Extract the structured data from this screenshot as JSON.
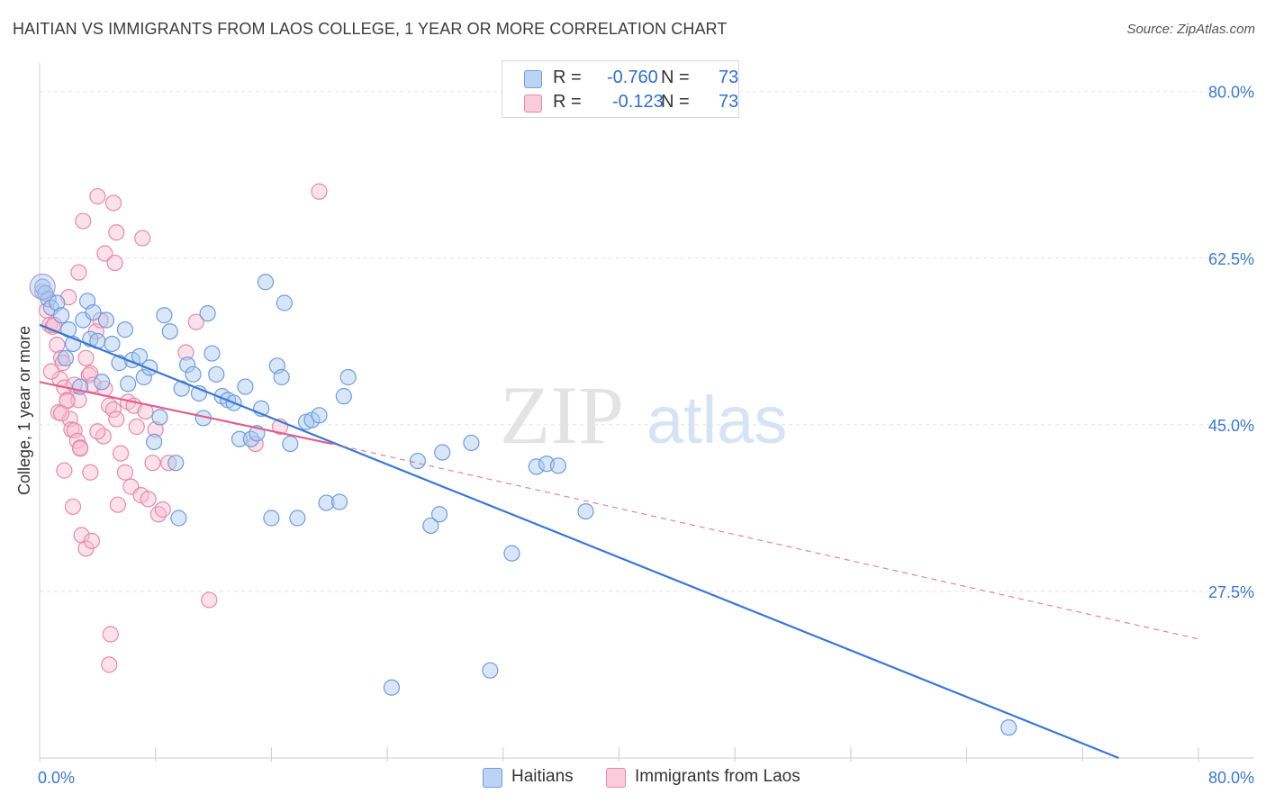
{
  "title": "HAITIAN VS IMMIGRANTS FROM LAOS COLLEGE, 1 YEAR OR MORE CORRELATION CHART",
  "source": "Source: ZipAtlas.com",
  "watermark": {
    "zip": "ZIP",
    "atlas": "atlas"
  },
  "legend": {
    "r_label": "R =",
    "n_label": "N =",
    "rows": [
      {
        "r": "-0.760",
        "n": "73",
        "fill": "#a9c7f0",
        "stroke": "#6d9de0"
      },
      {
        "r": "-0.123",
        "n": "73",
        "fill": "#f7bdd0",
        "stroke": "#e88aa8"
      }
    ]
  },
  "bottom_legend": [
    "Haitians",
    "Immigrants from Laos"
  ],
  "chart_data": {
    "type": "scatter",
    "ylabel": "College, 1 year or more",
    "xlim": [
      0,
      80
    ],
    "ylim": [
      10,
      83
    ],
    "x_tick_labels": [
      "0.0%",
      "80.0%"
    ],
    "y_ticks": [
      {
        "value": 80.0,
        "label": "80.0%"
      },
      {
        "value": 62.5,
        "label": "62.5%"
      },
      {
        "value": 45.0,
        "label": "45.0%"
      },
      {
        "value": 27.5,
        "label": "27.5%"
      }
    ],
    "grid": true,
    "colors": {
      "haitians": "#3a78d4",
      "laos": "#e0608c",
      "axis_label": "#3a78d4"
    },
    "series": [
      {
        "name": "Haitians",
        "r": -0.76,
        "n": 73,
        "trend": {
          "x": [
            0,
            74.5
          ],
          "y": [
            55.5,
            10.0
          ],
          "dashed_to": null
        },
        "points": [
          [
            0.2,
            59.5
          ],
          [
            0.4,
            58.8
          ],
          [
            0.6,
            58.2
          ],
          [
            0.8,
            57.3
          ],
          [
            1.2,
            57.8
          ],
          [
            1.5,
            56.5
          ],
          [
            2.0,
            55.0
          ],
          [
            2.3,
            53.5
          ],
          [
            1.8,
            52.0
          ],
          [
            2.8,
            49.0
          ],
          [
            3.0,
            56.0
          ],
          [
            3.3,
            58.0
          ],
          [
            3.7,
            56.8
          ],
          [
            3.5,
            54.0
          ],
          [
            4.0,
            53.8
          ],
          [
            4.3,
            49.5
          ],
          [
            4.6,
            56.0
          ],
          [
            5.0,
            53.5
          ],
          [
            5.5,
            51.5
          ],
          [
            5.9,
            55.0
          ],
          [
            6.1,
            49.3
          ],
          [
            6.4,
            51.8
          ],
          [
            6.9,
            52.2
          ],
          [
            7.2,
            50.0
          ],
          [
            7.6,
            51.0
          ],
          [
            7.9,
            43.2
          ],
          [
            8.3,
            45.8
          ],
          [
            8.6,
            56.5
          ],
          [
            9.0,
            54.8
          ],
          [
            9.4,
            41.0
          ],
          [
            9.6,
            35.2
          ],
          [
            9.8,
            48.8
          ],
          [
            10.2,
            51.3
          ],
          [
            10.6,
            50.3
          ],
          [
            11.0,
            48.3
          ],
          [
            11.3,
            45.7
          ],
          [
            11.6,
            56.7
          ],
          [
            11.9,
            52.5
          ],
          [
            12.2,
            50.3
          ],
          [
            12.6,
            48.0
          ],
          [
            13.0,
            47.6
          ],
          [
            13.4,
            47.3
          ],
          [
            13.8,
            43.5
          ],
          [
            14.2,
            49.0
          ],
          [
            14.6,
            43.5
          ],
          [
            15.0,
            44.1
          ],
          [
            15.3,
            46.7
          ],
          [
            15.6,
            60.0
          ],
          [
            16.0,
            35.2
          ],
          [
            16.4,
            51.2
          ],
          [
            16.7,
            50.0
          ],
          [
            16.9,
            57.8
          ],
          [
            17.3,
            43.0
          ],
          [
            17.8,
            35.2
          ],
          [
            18.4,
            45.3
          ],
          [
            18.8,
            45.5
          ],
          [
            19.3,
            46.0
          ],
          [
            19.8,
            36.8
          ],
          [
            20.7,
            36.9
          ],
          [
            21.0,
            48.0
          ],
          [
            21.3,
            50.0
          ],
          [
            26.1,
            41.2
          ],
          [
            27.0,
            34.4
          ],
          [
            27.6,
            35.6
          ],
          [
            27.8,
            42.1
          ],
          [
            29.8,
            43.1
          ],
          [
            34.3,
            40.6
          ],
          [
            35.0,
            40.9
          ],
          [
            35.8,
            40.7
          ],
          [
            37.7,
            35.9
          ],
          [
            32.6,
            31.5
          ],
          [
            31.1,
            19.2
          ],
          [
            24.3,
            17.4
          ],
          [
            66.9,
            13.2
          ]
        ]
      },
      {
        "name": "Immigrants from Laos",
        "r": -0.123,
        "n": 73,
        "trend": {
          "x": [
            0,
            20.2
          ],
          "y": [
            49.5,
            43.0
          ],
          "dashed_to": [
            80,
            22.5
          ]
        },
        "points": [
          [
            0.2,
            59.0
          ],
          [
            0.5,
            57.0
          ],
          [
            0.7,
            55.5
          ],
          [
            0.9,
            55.3
          ],
          [
            1.2,
            53.4
          ],
          [
            1.5,
            52.0
          ],
          [
            1.6,
            51.5
          ],
          [
            1.4,
            49.8
          ],
          [
            0.8,
            50.6
          ],
          [
            1.7,
            48.9
          ],
          [
            1.9,
            47.6
          ],
          [
            2.1,
            45.6
          ],
          [
            2.2,
            44.5
          ],
          [
            2.4,
            44.4
          ],
          [
            2.6,
            43.3
          ],
          [
            2.8,
            42.6
          ],
          [
            2.4,
            49.2
          ],
          [
            2.7,
            47.6
          ],
          [
            3.2,
            52.0
          ],
          [
            3.4,
            50.2
          ],
          [
            3.5,
            50.4
          ],
          [
            3.7,
            49.2
          ],
          [
            3.9,
            54.8
          ],
          [
            4.2,
            56.0
          ],
          [
            4.5,
            48.8
          ],
          [
            4.8,
            47.0
          ],
          [
            5.1,
            46.6
          ],
          [
            5.3,
            45.6
          ],
          [
            5.6,
            42.0
          ],
          [
            5.9,
            40.0
          ],
          [
            6.1,
            47.4
          ],
          [
            6.3,
            38.5
          ],
          [
            6.7,
            44.8
          ],
          [
            7.0,
            37.6
          ],
          [
            7.5,
            37.2
          ],
          [
            7.8,
            41.0
          ],
          [
            8.2,
            35.6
          ],
          [
            8.5,
            36.1
          ],
          [
            2.0,
            58.4
          ],
          [
            2.7,
            61.0
          ],
          [
            3.0,
            66.4
          ],
          [
            4.0,
            69.0
          ],
          [
            4.5,
            63.0
          ],
          [
            5.1,
            68.3
          ],
          [
            5.3,
            65.2
          ],
          [
            5.2,
            62.0
          ],
          [
            7.1,
            64.6
          ],
          [
            1.3,
            46.3
          ],
          [
            1.9,
            47.5
          ],
          [
            1.0,
            55.5
          ],
          [
            1.5,
            46.2
          ],
          [
            1.7,
            40.2
          ],
          [
            2.3,
            36.4
          ],
          [
            2.9,
            33.4
          ],
          [
            3.2,
            32.0
          ],
          [
            3.6,
            32.8
          ],
          [
            2.8,
            42.5
          ],
          [
            3.5,
            40.0
          ],
          [
            4.4,
            43.8
          ],
          [
            5.4,
            36.6
          ],
          [
            6.5,
            47.0
          ],
          [
            7.3,
            46.4
          ],
          [
            8.0,
            44.5
          ],
          [
            8.9,
            41.0
          ],
          [
            10.1,
            52.6
          ],
          [
            10.8,
            55.8
          ],
          [
            11.7,
            26.6
          ],
          [
            14.9,
            43.0
          ],
          [
            16.6,
            44.8
          ],
          [
            19.3,
            69.5
          ],
          [
            4.9,
            23.0
          ],
          [
            4.8,
            19.8
          ],
          [
            4.0,
            44.3
          ]
        ]
      }
    ]
  }
}
